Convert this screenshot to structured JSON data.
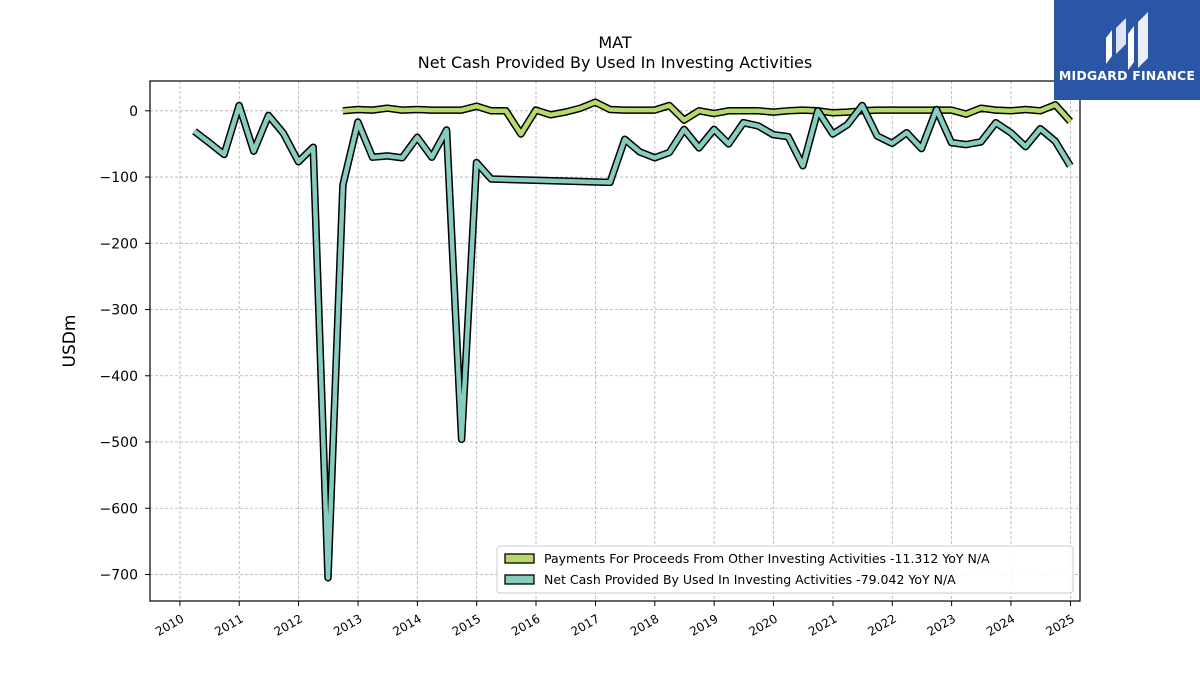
{
  "logo": {
    "text": "MIDGARD FINANCE",
    "bg_color": "#2a56a5"
  },
  "chart_data": {
    "type": "line",
    "title": "MAT",
    "subtitle": "Net Cash Provided By Used In Investing Activities",
    "ylabel": "USDm",
    "xlabel": "",
    "xlim": [
      "2009-07-01",
      "2025-03-01"
    ],
    "ylim": [
      -740,
      45
    ],
    "y_ticks": [
      0,
      -100,
      -200,
      -300,
      -400,
      -500,
      -600,
      -700
    ],
    "y_tick_labels": [
      "0",
      "−100",
      "−200",
      "−300",
      "−400",
      "−500",
      "−600",
      "−700"
    ],
    "x_ticks": [
      "2010",
      "2011",
      "2012",
      "2013",
      "2014",
      "2015",
      "2016",
      "2017",
      "2018",
      "2019",
      "2020",
      "2021",
      "2022",
      "2023",
      "2024",
      "2025"
    ],
    "grid": true,
    "legend_position": "lower-right",
    "series": [
      {
        "name": "Payments For Proceeds From Other Investing Activities  -11.312 YoY N/A",
        "color": "#b5d96a",
        "points": [
          [
            "2012-09-30",
            0
          ],
          [
            "2012-12-31",
            2
          ],
          [
            "2013-03-31",
            1
          ],
          [
            "2013-06-30",
            4
          ],
          [
            "2013-09-30",
            1
          ],
          [
            "2013-12-31",
            2
          ],
          [
            "2014-03-31",
            1
          ],
          [
            "2014-06-30",
            1
          ],
          [
            "2014-09-30",
            1
          ],
          [
            "2014-12-31",
            7
          ],
          [
            "2015-03-31",
            0
          ],
          [
            "2015-06-30",
            0
          ],
          [
            "2015-09-30",
            -35
          ],
          [
            "2015-12-31",
            1
          ],
          [
            "2016-03-31",
            -6
          ],
          [
            "2016-06-30",
            -2
          ],
          [
            "2016-09-30",
            4
          ],
          [
            "2016-12-31",
            13
          ],
          [
            "2017-03-31",
            2
          ],
          [
            "2017-06-30",
            1
          ],
          [
            "2017-09-30",
            1
          ],
          [
            "2017-12-31",
            1
          ],
          [
            "2018-03-31",
            8
          ],
          [
            "2018-06-30",
            -14
          ],
          [
            "2018-09-30",
            0
          ],
          [
            "2018-12-31",
            -4
          ],
          [
            "2019-03-31",
            0
          ],
          [
            "2019-06-30",
            0
          ],
          [
            "2019-09-30",
            0
          ],
          [
            "2019-12-31",
            -2
          ],
          [
            "2020-03-31",
            0
          ],
          [
            "2020-06-30",
            1
          ],
          [
            "2020-09-30",
            0
          ],
          [
            "2020-12-31",
            -3
          ],
          [
            "2021-03-31",
            -2
          ],
          [
            "2021-06-30",
            0
          ],
          [
            "2021-09-30",
            1
          ],
          [
            "2021-12-31",
            1
          ],
          [
            "2022-03-31",
            1
          ],
          [
            "2022-06-30",
            1
          ],
          [
            "2022-09-30",
            1
          ],
          [
            "2022-12-31",
            1
          ],
          [
            "2023-03-31",
            -5
          ],
          [
            "2023-06-30",
            4
          ],
          [
            "2023-09-30",
            1
          ],
          [
            "2023-12-31",
            0
          ],
          [
            "2024-03-31",
            2
          ],
          [
            "2024-06-30",
            0
          ],
          [
            "2024-09-30",
            9
          ],
          [
            "2024-12-31",
            -16
          ]
        ]
      },
      {
        "name": "Net Cash Provided By Used In Investing Activities  -79.042 YoY N/A",
        "color": "#86cdc0",
        "points": [
          [
            "2010-03-31",
            -31
          ],
          [
            "2010-06-30",
            -48
          ],
          [
            "2010-09-30",
            -66
          ],
          [
            "2010-12-31",
            8
          ],
          [
            "2011-03-31",
            -61
          ],
          [
            "2011-06-30",
            -7
          ],
          [
            "2011-09-30",
            -34
          ],
          [
            "2011-12-31",
            -77
          ],
          [
            "2012-03-31",
            -55
          ],
          [
            "2012-06-30",
            -705
          ],
          [
            "2012-09-30",
            -112
          ],
          [
            "2012-12-31",
            -17
          ],
          [
            "2013-03-31",
            -70
          ],
          [
            "2013-06-30",
            -68
          ],
          [
            "2013-09-30",
            -71
          ],
          [
            "2013-12-31",
            -40
          ],
          [
            "2014-03-31",
            -70
          ],
          [
            "2014-06-30",
            -29
          ],
          [
            "2014-09-30",
            -496
          ],
          [
            "2014-12-31",
            -78
          ],
          [
            "2015-03-31",
            -103
          ],
          [
            "2017-03-31",
            -108
          ],
          [
            "2017-06-30",
            -43
          ],
          [
            "2017-09-30",
            -62
          ],
          [
            "2017-12-31",
            -71
          ],
          [
            "2018-03-31",
            -63
          ],
          [
            "2018-06-30",
            -28
          ],
          [
            "2018-09-30",
            -56
          ],
          [
            "2018-12-31",
            -28
          ],
          [
            "2019-03-31",
            -50
          ],
          [
            "2019-06-30",
            -18
          ],
          [
            "2019-09-30",
            -23
          ],
          [
            "2019-12-31",
            -36
          ],
          [
            "2020-03-31",
            -39
          ],
          [
            "2020-06-30",
            -83
          ],
          [
            "2020-09-30",
            0
          ],
          [
            "2020-12-31",
            -35
          ],
          [
            "2021-03-31",
            -21
          ],
          [
            "2021-06-30",
            8
          ],
          [
            "2021-09-30",
            -38
          ],
          [
            "2021-12-31",
            -49
          ],
          [
            "2022-03-31",
            -33
          ],
          [
            "2022-06-30",
            -57
          ],
          [
            "2022-09-30",
            2
          ],
          [
            "2022-12-31",
            -48
          ],
          [
            "2023-03-31",
            -51
          ],
          [
            "2023-06-30",
            -47
          ],
          [
            "2023-09-30",
            -18
          ],
          [
            "2023-12-31",
            -33
          ],
          [
            "2024-03-31",
            -54
          ],
          [
            "2024-06-30",
            -27
          ],
          [
            "2024-09-30",
            -46
          ],
          [
            "2024-12-31",
            -83
          ]
        ]
      }
    ]
  }
}
